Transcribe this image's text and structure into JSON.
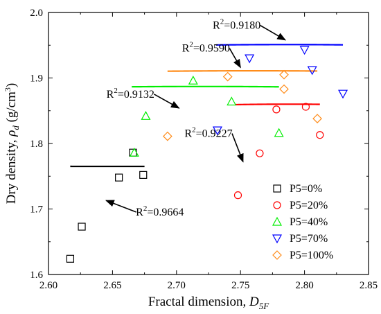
{
  "chart_data": {
    "type": "scatter",
    "xlabel": "Fractal dimension, ",
    "xlabel_sym": "D",
    "xlabel_sub": "5F",
    "ylabel_pre": "Dry density, ",
    "ylabel_sym": "ρ",
    "ylabel_sub": "d",
    "ylabel_post": " (g/cm",
    "ylabel_sup": "3",
    "ylabel_end": ")",
    "xlim": [
      2.6,
      2.85
    ],
    "ylim": [
      1.6,
      2.0
    ],
    "xticks": [
      "2.60",
      "2.65",
      "2.70",
      "2.75",
      "2.80",
      "2.85"
    ],
    "yticks": [
      "1.6",
      "1.7",
      "1.8",
      "1.9",
      "2.0"
    ],
    "grid": false,
    "legend_position": "bottom-right",
    "series": [
      {
        "name": "P5=0%",
        "color": "#000000",
        "marker": "square",
        "points": [
          [
            2.617,
            1.624
          ],
          [
            2.626,
            1.673
          ],
          [
            2.655,
            1.748
          ],
          [
            2.666,
            1.786
          ],
          [
            2.674,
            1.752
          ]
        ],
        "fit": {
          "coef": [
            1.765,
            -0.004,
            -0.38
          ],
          "x0": 2.67,
          "x_range": [
            2.617,
            2.675
          ]
        },
        "r2_label": "R²=0.9664"
      },
      {
        "name": "P5=20%",
        "color": "#ff0000",
        "marker": "circle",
        "points": [
          [
            2.748,
            1.721
          ],
          [
            2.765,
            1.785
          ],
          [
            2.778,
            1.852
          ],
          [
            2.801,
            1.856
          ],
          [
            2.812,
            1.813
          ]
        ],
        "fit": {
          "coef": [
            1.86,
            -0.4
          ],
          "x0": 2.788,
          "x_range": [
            2.746,
            2.812
          ]
        },
        "r2_label": "R²=0.9227"
      },
      {
        "name": "P5=40%",
        "color": "#00ee00",
        "marker": "triangle-up",
        "points": [
          [
            2.667,
            1.786
          ],
          [
            2.676,
            1.842
          ],
          [
            2.713,
            1.896
          ],
          [
            2.743,
            1.864
          ],
          [
            2.78,
            1.816
          ]
        ],
        "fit": {
          "coef": [
            1.887,
            -0.14
          ],
          "x0": 2.72,
          "x_range": [
            2.665,
            2.78
          ]
        },
        "r2_label": "R²=0.9132"
      },
      {
        "name": "P5=70%",
        "color": "#0000ff",
        "marker": "triangle-down",
        "points": [
          [
            2.732,
            1.82
          ],
          [
            2.757,
            1.93
          ],
          [
            2.8,
            1.943
          ],
          [
            2.806,
            1.912
          ],
          [
            2.83,
            1.876
          ]
        ],
        "fit": {
          "coef": [
            1.951,
            -0.2
          ],
          "x0": 2.785,
          "x_range": [
            2.731,
            2.83
          ]
        },
        "r2_label": "R²=0.9180"
      },
      {
        "name": "P5=100%",
        "color": "#ff8c1a",
        "marker": "diamond",
        "points": [
          [
            2.693,
            1.811
          ],
          [
            2.74,
            1.902
          ],
          [
            2.784,
            1.905
          ],
          [
            2.784,
            1.883
          ],
          [
            2.81,
            1.838
          ]
        ],
        "fit": {
          "coef": [
            1.911,
            -0.15
          ],
          "x0": 2.76,
          "x_range": [
            2.693,
            2.81
          ]
        },
        "r2_label": "R²=0.9590"
      }
    ],
    "annotations": [
      {
        "series": 0,
        "text_x": 2.687,
        "text_y": 1.69,
        "arrow_to": [
          2.645,
          1.713
        ]
      },
      {
        "series": 1,
        "text_x": 2.725,
        "text_y": 1.81,
        "arrow_to": [
          2.752,
          1.772
        ]
      },
      {
        "series": 2,
        "text_x": 2.664,
        "text_y": 1.87,
        "arrow_to": [
          2.702,
          1.854
        ]
      },
      {
        "series": 3,
        "text_x": 2.747,
        "text_y": 1.975,
        "arrow_to": [
          2.785,
          1.958
        ]
      },
      {
        "series": 4,
        "text_x": 2.723,
        "text_y": 1.94,
        "arrow_to": [
          2.75,
          1.916
        ]
      }
    ]
  }
}
